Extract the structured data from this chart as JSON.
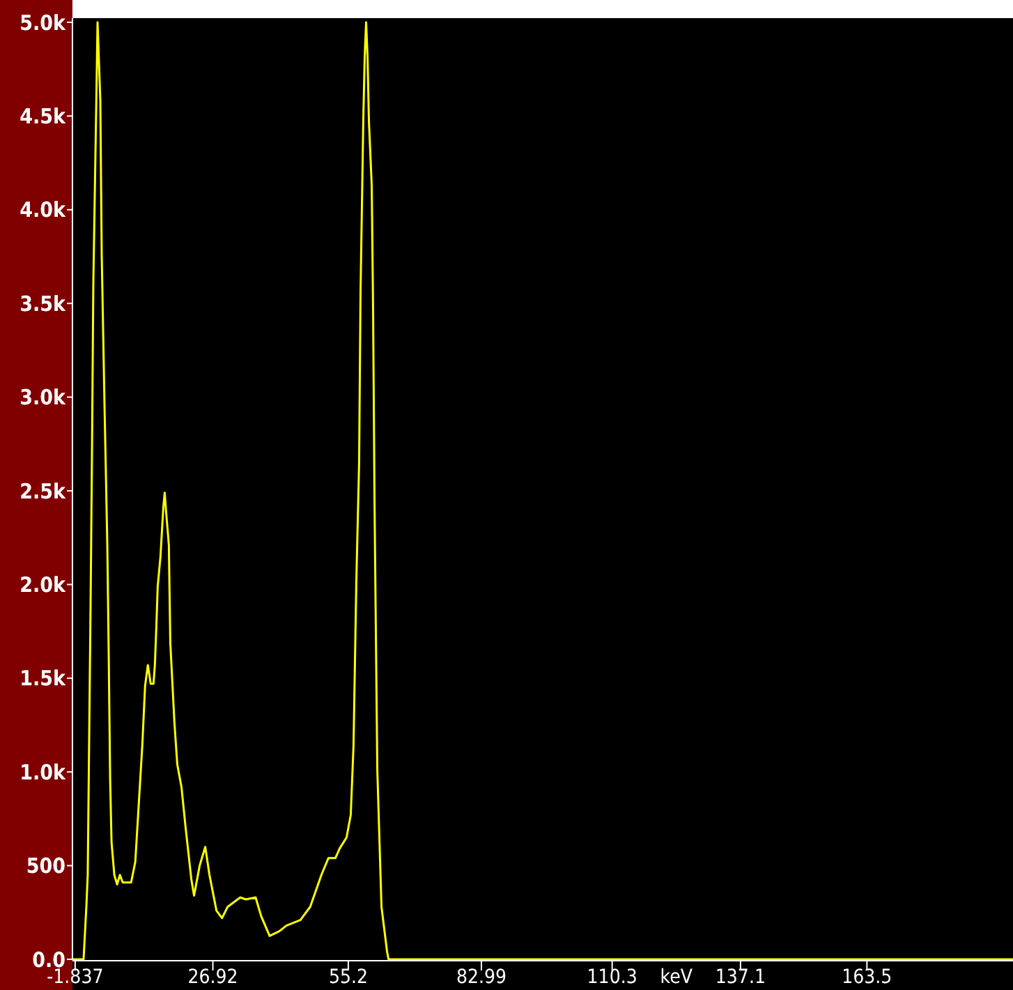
{
  "chart_data": {
    "type": "line",
    "xlabel": "keV",
    "xlim": [
      -2.4,
      194
    ],
    "ylim": [
      0,
      5000
    ],
    "xticks": [
      -1.837,
      26.92,
      55.2,
      82.99,
      110.3,
      137.1,
      163.5
    ],
    "yticks": [
      {
        "value": 0,
        "label": "0.0"
      },
      500,
      {
        "value": 1000,
        "label": "1.0k"
      },
      {
        "value": 1500,
        "label": "1.5k"
      },
      {
        "value": 2000,
        "label": "2.0k"
      },
      {
        "value": 2500,
        "label": "2.5k"
      },
      {
        "value": 3000,
        "label": "3.0k"
      },
      {
        "value": 3500,
        "label": "3.5k"
      },
      {
        "value": 4000,
        "label": "4.0k"
      },
      {
        "value": 4500,
        "label": "4.5k"
      },
      {
        "value": 5000,
        "label": "5.0k"
      }
    ],
    "grid": false,
    "marker": "none",
    "line_style": "solid",
    "series": [
      {
        "color": "#ffff00",
        "x": [
          -2.4,
          -0.08,
          0.5,
          0.79,
          1.38,
          1.67,
          1.96,
          2.55,
          2.84,
          3.42,
          3.71,
          4.3,
          4.88,
          5.17,
          5.47,
          5.76,
          6.34,
          6.93,
          7.51,
          8.1,
          9.85,
          10.72,
          11.31,
          12.18,
          12.77,
          13.35,
          13.94,
          14.52,
          14.81,
          15.11,
          15.4,
          15.98,
          16.57,
          16.86,
          17.15,
          17.73,
          18.03,
          18.9,
          19.49,
          20.36,
          21.24,
          22.41,
          22.99,
          24.16,
          25.33,
          26.21,
          27.67,
          28.83,
          30.0,
          32.63,
          33.8,
          35.85,
          37.01,
          38.77,
          40.81,
          42.27,
          45.19,
          47.24,
          49.58,
          51.04,
          52.5,
          53.37,
          54.83,
          55.71,
          56.29,
          56.88,
          57.46,
          57.75,
          58.34,
          58.63,
          58.92,
          59.21,
          59.51,
          60.09,
          60.38,
          60.67,
          60.97,
          61.26,
          62.13,
          63.3,
          63.6,
          194
        ],
        "values": [
          0,
          0,
          280,
          450,
          1880,
          2680,
          3610,
          4530,
          5000,
          4580,
          3760,
          2950,
          2210,
          1630,
          960,
          625,
          450,
          400,
          450,
          410,
          410,
          520,
          770,
          1140,
          1460,
          1570,
          1470,
          1470,
          1570,
          1770,
          1990,
          2150,
          2410,
          2490,
          2390,
          2210,
          1690,
          1260,
          1040,
          920,
          700,
          430,
          340,
          500,
          600,
          450,
          260,
          220,
          280,
          330,
          320,
          330,
          230,
          125,
          150,
          180,
          210,
          280,
          450,
          540,
          540,
          590,
          650,
          770,
          1140,
          2020,
          2650,
          3550,
          4490,
          4820,
          5000,
          4820,
          4470,
          4130,
          3460,
          2460,
          1710,
          1010,
          280,
          40,
          0,
          0
        ]
      }
    ]
  }
}
